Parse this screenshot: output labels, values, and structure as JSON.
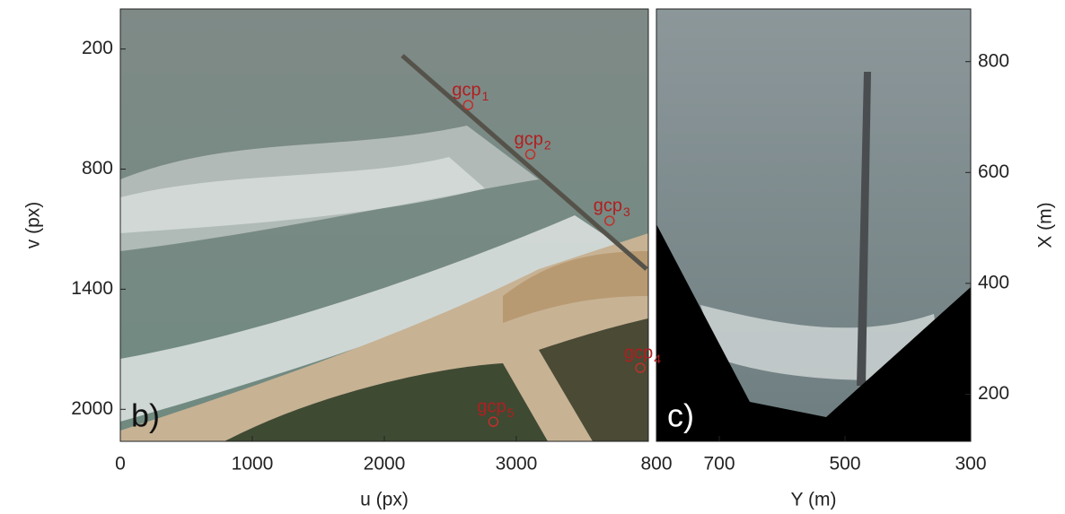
{
  "panels": [
    {
      "label": "b)",
      "xlabel": "u (px)",
      "ylabel": "v (px)",
      "xlim": [
        0,
        4000
      ],
      "ylim": [
        0,
        2160
      ],
      "xticks": [
        0,
        1000,
        2000,
        3000
      ],
      "yticks": [
        200,
        800,
        1400,
        2000
      ],
      "points": [
        {
          "label": "gcp",
          "subscript": "1",
          "u": 2635,
          "v": 480
        },
        {
          "label": "gcp",
          "subscript": "2",
          "u": 3106,
          "v": 726
        },
        {
          "label": "gcp",
          "subscript": "3",
          "u": 3706,
          "v": 1058
        },
        {
          "label": "gcp",
          "subscript": "4",
          "u": 3939,
          "v": 1793
        },
        {
          "label": "gcp",
          "subscript": "5",
          "u": 2826,
          "v": 2062
        }
      ]
    },
    {
      "label": "c)",
      "xlabel": "Y (m)",
      "ylabel": "X (m)",
      "xlim": [
        800,
        300
      ],
      "ylim": [
        115,
        895
      ],
      "xticks": [
        800,
        700,
        500,
        300
      ],
      "yticks": [
        200,
        400,
        600,
        800
      ]
    }
  ]
}
